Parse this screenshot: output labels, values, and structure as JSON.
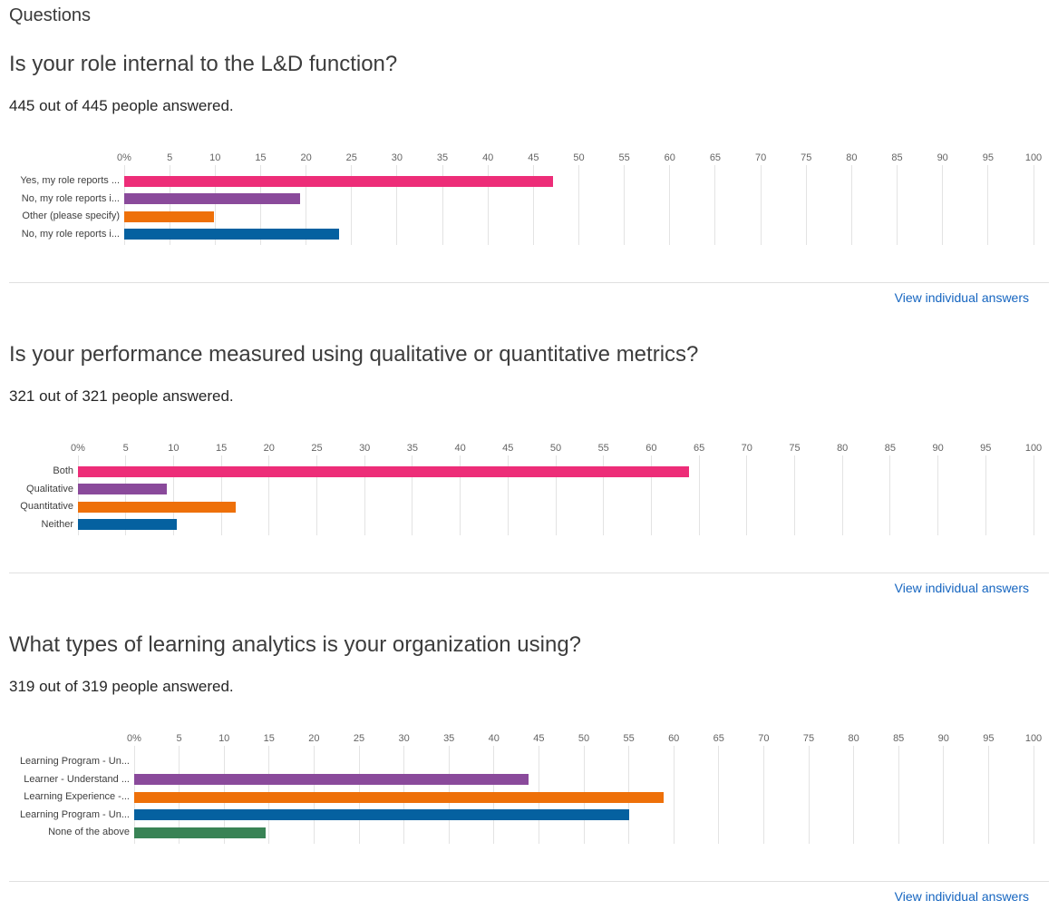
{
  "page": {
    "title": "Questions"
  },
  "colors": {
    "bar_pink": "#ED2D78",
    "bar_purple": "#8A4A9B",
    "bar_orange": "#EE7009",
    "bar_blue": "#0561A0",
    "bar_green": "#398355",
    "link_blue": "#1565C0",
    "gridline": "#E3E3E3",
    "divider": "#E0E0E0"
  },
  "sections": [
    {
      "question": "Is your role internal to the L&D function?",
      "answered": "445 out of 445 people answered.",
      "view_individual_answers": "View individual answers"
    },
    {
      "question": "Is your performance measured using qualitative or quantitative metrics?",
      "answered": "321 out of 321 people answered.",
      "view_individual_answers": "View individual answers"
    },
    {
      "question": "What types of learning analytics is your organization using?",
      "answered": "319 out of 319 people answered.",
      "view_individual_answers": "View individual answers"
    }
  ],
  "chart_data": [
    {
      "type": "bar",
      "orientation": "horizontal",
      "title": "Is your role internal to the L&D function?",
      "categories": [
        "Yes, my role reports ...",
        "No, my role reports i...",
        "Other (please specify)",
        "No, my role reports i..."
      ],
      "values": [
        47.2,
        19.3,
        9.9,
        23.6
      ],
      "unit": "%",
      "bar_colors": [
        "#ED2D78",
        "#8A4A9B",
        "#EE7009",
        "#0561A0"
      ],
      "xlim": [
        0,
        100
      ],
      "x_tick_labels": [
        "0%",
        "5",
        "10",
        "15",
        "20",
        "25",
        "30",
        "35",
        "40",
        "45",
        "50",
        "55",
        "60",
        "65",
        "70",
        "75",
        "80",
        "85",
        "90",
        "95",
        "100"
      ],
      "grid": true,
      "legend": false
    },
    {
      "type": "bar",
      "orientation": "horizontal",
      "title": "Is your performance measured using qualitative or quantitative metrics?",
      "categories": [
        "Both",
        "Qualitative",
        "Quantitative",
        "Neither"
      ],
      "values": [
        63.9,
        9.3,
        16.5,
        10.3
      ],
      "unit": "%",
      "bar_colors": [
        "#ED2D78",
        "#8A4A9B",
        "#EE7009",
        "#0561A0"
      ],
      "xlim": [
        0,
        100
      ],
      "x_tick_labels": [
        "0%",
        "5",
        "10",
        "15",
        "20",
        "25",
        "30",
        "35",
        "40",
        "45",
        "50",
        "55",
        "60",
        "65",
        "70",
        "75",
        "80",
        "85",
        "90",
        "95",
        "100"
      ],
      "grid": true,
      "legend": false
    },
    {
      "type": "bar",
      "orientation": "horizontal",
      "title": "What types of learning analytics is your organization using?",
      "categories": [
        "Learning Program - Un...",
        "Learner - Understand ...",
        "Learning Experience -...",
        "Learning Program - Un...",
        "None of the above"
      ],
      "values": [
        0,
        43.9,
        58.9,
        55.0,
        14.6
      ],
      "unit": "%",
      "bar_colors": [
        "#ED2D78",
        "#8A4A9B",
        "#EE7009",
        "#0561A0",
        "#398355"
      ],
      "xlim": [
        0,
        100
      ],
      "x_tick_labels": [
        "0%",
        "5",
        "10",
        "15",
        "20",
        "25",
        "30",
        "35",
        "40",
        "45",
        "50",
        "55",
        "60",
        "65",
        "70",
        "75",
        "80",
        "85",
        "90",
        "95",
        "100"
      ],
      "grid": true,
      "legend": false
    }
  ]
}
